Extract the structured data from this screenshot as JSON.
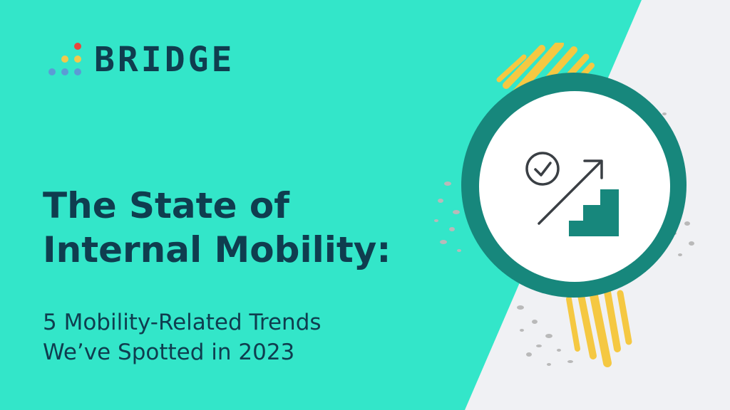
{
  "brand": {
    "name": "BRIDGE",
    "dot_colors": [
      "#e8453c",
      "#f2c94c",
      "#f2c94c",
      "#5b9bd5",
      "#5b9bd5",
      "#5b9bd5"
    ]
  },
  "headline": {
    "line1": "The State of",
    "line2": "Internal Mobility:"
  },
  "subheadline": {
    "line1": "5 Mobility-Related Trends",
    "line2": "We’ve Spotted in 2023"
  },
  "colors": {
    "background": "#33e6c9",
    "side_panel": "#f0f1f4",
    "text": "#0f3d4f",
    "ring": "#17877c",
    "accent_yellow": "#f5c842",
    "speckle_gray": "#b9b9b9"
  },
  "illustration": {
    "icons": [
      "check-circle-icon",
      "arrow-up-right-icon",
      "stairs-icon"
    ]
  }
}
